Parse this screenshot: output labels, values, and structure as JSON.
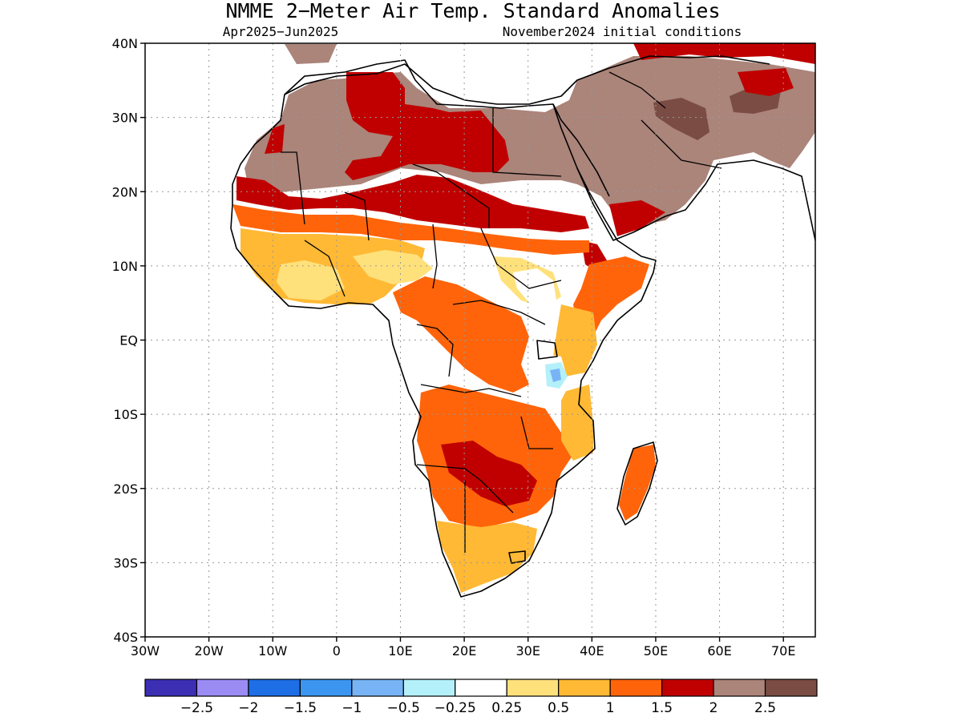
{
  "title": "NMME 2−Meter Air Temp. Standard Anomalies",
  "subtitle_left": "Apr2025−Jun2025",
  "subtitle_right": "November2024 initial conditions",
  "map": {
    "lon_range": [
      -30,
      75
    ],
    "lat_range": [
      -40,
      40
    ],
    "lat_ticks": [
      {
        "value": 40,
        "label": "40N"
      },
      {
        "value": 30,
        "label": "30N"
      },
      {
        "value": 20,
        "label": "20N"
      },
      {
        "value": 10,
        "label": "10N"
      },
      {
        "value": 0,
        "label": "EQ"
      },
      {
        "value": -10,
        "label": "10S"
      },
      {
        "value": -20,
        "label": "20S"
      },
      {
        "value": -30,
        "label": "30S"
      },
      {
        "value": -40,
        "label": "40S"
      }
    ],
    "lon_ticks": [
      {
        "value": -30,
        "label": "30W"
      },
      {
        "value": -20,
        "label": "20W"
      },
      {
        "value": -10,
        "label": "10W"
      },
      {
        "value": 0,
        "label": "0"
      },
      {
        "value": 10,
        "label": "10E"
      },
      {
        "value": 20,
        "label": "20E"
      },
      {
        "value": 30,
        "label": "30E"
      },
      {
        "value": 40,
        "label": "40E"
      },
      {
        "value": 50,
        "label": "50E"
      },
      {
        "value": 60,
        "label": "60E"
      },
      {
        "value": 70,
        "label": "70E"
      }
    ],
    "grid": "dotted",
    "ocean_color": "#ffffff"
  },
  "legend": {
    "colors": [
      "#3c2fb4",
      "#9b8cf4",
      "#1e6ee6",
      "#3c96f0",
      "#78b4f5",
      "#b4f0fa",
      "#ffffff",
      "#ffe17c",
      "#ffb934",
      "#ff640a",
      "#c00000",
      "#ab847a",
      "#7a4c43"
    ],
    "labels": [
      "−2.5",
      "−2",
      "−1.5",
      "−1",
      "−0.5",
      "−0.25",
      "0.25",
      "0.5",
      "1",
      "1.5",
      "2",
      "2.5"
    ]
  }
}
